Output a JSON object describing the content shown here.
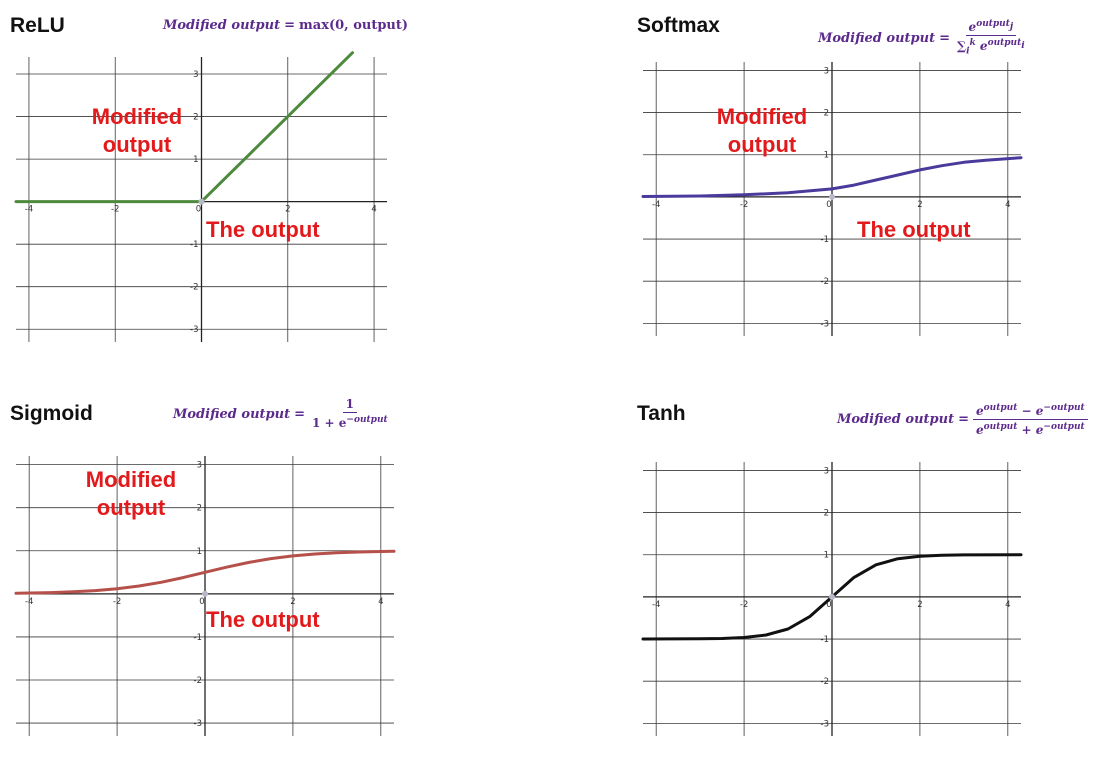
{
  "chart_data": [
    {
      "type": "line",
      "title": "ReLU",
      "formula": {
        "lhs": "Modified output",
        "eq": "=",
        "rhs": "max(0, output)"
      },
      "ylabel_lines": [
        "Modified",
        "output"
      ],
      "xlabel": "The output",
      "xlim": [
        -4.3,
        4.3
      ],
      "ylim": [
        -3.3,
        3.4
      ],
      "x_ticks": [
        -4,
        -2,
        0,
        2,
        4
      ],
      "x_tick_labels": [
        "-4",
        "-2",
        "0",
        "2",
        "4"
      ],
      "y_ticks": [
        -3,
        -2,
        -1,
        1,
        2,
        3
      ],
      "y_tick_labels": [
        "-3",
        "-2",
        "-1",
        "1",
        "2",
        "3"
      ],
      "grid": true,
      "series": [
        {
          "color": "#4e8a3e",
          "points": [
            [
              -4.3,
              0
            ],
            [
              0,
              0
            ],
            [
              3.5,
              3.5
            ]
          ]
        }
      ]
    },
    {
      "type": "line",
      "title": "Softmax",
      "formula": {
        "lhs": "Modified output",
        "eq": "=",
        "num_base": "e",
        "num_sup": "output",
        "num_sub": "j",
        "den_sum": "∑",
        "den_sum_sub": "i",
        "den_sum_sup": "k",
        "den_base": "e",
        "den_sup": "output",
        "den_sub": "i"
      },
      "ylabel_lines": [
        "Modified",
        "output"
      ],
      "xlabel": "The output",
      "xlim": [
        -4.3,
        4.3
      ],
      "ylim": [
        -3.3,
        3.2
      ],
      "x_ticks": [
        -4,
        -2,
        0,
        2,
        4
      ],
      "x_tick_labels": [
        "-4",
        "-2",
        "0",
        "2",
        "4"
      ],
      "y_ticks": [
        -3,
        -2,
        -1,
        1,
        2,
        3
      ],
      "y_tick_labels": [
        "-3",
        "-2",
        "-1",
        "1",
        "2",
        "3"
      ],
      "grid": true,
      "series": [
        {
          "color": "#4b3a9c",
          "points": [
            [
              -4.3,
              0.01
            ],
            [
              -3,
              0.02
            ],
            [
              -2,
              0.05
            ],
            [
              -1,
              0.1
            ],
            [
              0,
              0.19
            ],
            [
              0.5,
              0.28
            ],
            [
              1,
              0.4
            ],
            [
              1.5,
              0.52
            ],
            [
              2,
              0.64
            ],
            [
              2.5,
              0.74
            ],
            [
              3,
              0.82
            ],
            [
              3.5,
              0.87
            ],
            [
              4.3,
              0.93
            ]
          ]
        }
      ]
    },
    {
      "type": "line",
      "title": "Sigmoid",
      "formula": {
        "lhs": "Modified output",
        "eq": "=",
        "num": "1",
        "den": "1 + e",
        "den_sup": "−output"
      },
      "ylabel_lines": [
        "Modified",
        "output"
      ],
      "xlabel": "The output",
      "xlim": [
        -4.3,
        4.3
      ],
      "ylim": [
        -3.3,
        3.2
      ],
      "x_ticks": [
        -4,
        -2,
        0,
        2,
        4
      ],
      "x_tick_labels": [
        "-4",
        "-2",
        "0",
        "2",
        "4"
      ],
      "y_ticks": [
        -3,
        -2,
        -1,
        1,
        2,
        3
      ],
      "y_tick_labels": [
        "-3",
        "-2",
        "-1",
        "1",
        "2",
        "3"
      ],
      "grid": true,
      "series": [
        {
          "color": "#b5504a",
          "points": [
            [
              -4.3,
              0.013
            ],
            [
              -3.5,
              0.029
            ],
            [
              -3,
              0.047
            ],
            [
              -2.5,
              0.076
            ],
            [
              -2,
              0.119
            ],
            [
              -1.5,
              0.182
            ],
            [
              -1,
              0.269
            ],
            [
              -0.5,
              0.378
            ],
            [
              0,
              0.5
            ],
            [
              0.5,
              0.622
            ],
            [
              1,
              0.731
            ],
            [
              1.5,
              0.818
            ],
            [
              2,
              0.881
            ],
            [
              2.5,
              0.924
            ],
            [
              3,
              0.953
            ],
            [
              3.5,
              0.971
            ],
            [
              4.3,
              0.987
            ]
          ]
        }
      ]
    },
    {
      "type": "line",
      "title": "Tanh",
      "formula": {
        "lhs": "Modified output",
        "eq": "=",
        "num_a": "e",
        "num_a_sup": "output",
        "num_op": " − ",
        "num_b": "e",
        "num_b_sup": "−output",
        "den_a": "e",
        "den_a_sup": "output",
        "den_op": " + ",
        "den_b": "e",
        "den_b_sup": "−output"
      },
      "xlim": [
        -4.3,
        4.3
      ],
      "ylim": [
        -3.3,
        3.2
      ],
      "x_ticks": [
        -4,
        -2,
        0,
        2,
        4
      ],
      "x_tick_labels": [
        "-4",
        "-2",
        "0",
        "2",
        "4"
      ],
      "y_ticks": [
        -3,
        -2,
        -1,
        1,
        2,
        3
      ],
      "y_tick_labels": [
        "-3",
        "-2",
        "-1",
        "1",
        "2",
        "3"
      ],
      "grid": true,
      "series": [
        {
          "color": "#111111",
          "points": [
            [
              -4.3,
              -1.0
            ],
            [
              -3,
              -0.995
            ],
            [
              -2.5,
              -0.987
            ],
            [
              -2,
              -0.964
            ],
            [
              -1.5,
              -0.905
            ],
            [
              -1,
              -0.762
            ],
            [
              -0.5,
              -0.462
            ],
            [
              0,
              0
            ],
            [
              0.5,
              0.462
            ],
            [
              1,
              0.762
            ],
            [
              1.5,
              0.905
            ],
            [
              2,
              0.964
            ],
            [
              2.5,
              0.987
            ],
            [
              3,
              0.995
            ],
            [
              4.3,
              1.0
            ]
          ]
        }
      ]
    }
  ]
}
